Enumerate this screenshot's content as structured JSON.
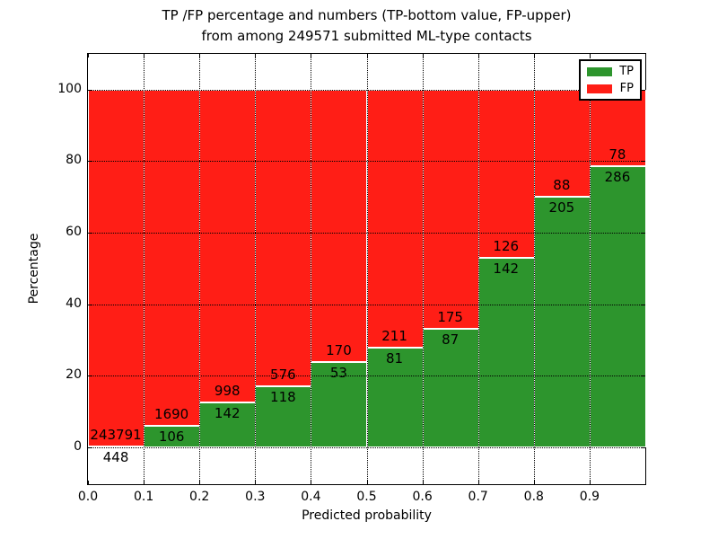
{
  "figure": {
    "title_line1": "TP /FP percentage and numbers (TP-bottom value, FP-upper)",
    "title_line2": "from among 249571 submitted ML-type contacts"
  },
  "chart_data": {
    "type": "stacked_bar",
    "title": "TP /FP percentage and numbers (TP-bottom value, FP-upper) from among 249571 submitted ML-type contacts",
    "xlabel": "Predicted probability",
    "ylabel": "Percentage",
    "x_tick_labels": [
      "0.0",
      "0.1",
      "0.2",
      "0.3",
      "0.4",
      "0.5",
      "0.6",
      "0.7",
      "0.8",
      "0.9"
    ],
    "y_tick_values": [
      0,
      20,
      40,
      60,
      80,
      100
    ],
    "xlim": [
      0.0,
      1.0
    ],
    "ylim": [
      -10.5,
      110.2
    ],
    "grid": true,
    "bar_width": 0.1,
    "units": "percent stacked to 100, labels show raw counts",
    "categories": [
      "0.0-0.1",
      "0.1-0.2",
      "0.2-0.3",
      "0.3-0.4",
      "0.4-0.5",
      "0.5-0.6",
      "0.6-0.7",
      "0.7-0.8",
      "0.8-0.9",
      "0.9-1.0"
    ],
    "series": [
      {
        "name": "TP",
        "color": "#2d952d",
        "values": [
          448,
          106,
          142,
          118,
          53,
          81,
          87,
          142,
          205,
          286
        ]
      },
      {
        "name": "FP",
        "color": "#ff1e16",
        "values": [
          243791,
          1690,
          998,
          576,
          170,
          211,
          175,
          126,
          88,
          78
        ]
      }
    ],
    "tp_pct": [
      0.18,
      5.9,
      12.46,
      17.0,
      23.77,
      27.74,
      33.21,
      52.99,
      69.97,
      78.57
    ],
    "legend": {
      "position": "upper right",
      "items": [
        {
          "label": "TP",
          "color": "#2d952d"
        },
        {
          "label": "FP",
          "color": "#ff1e16"
        }
      ]
    }
  }
}
